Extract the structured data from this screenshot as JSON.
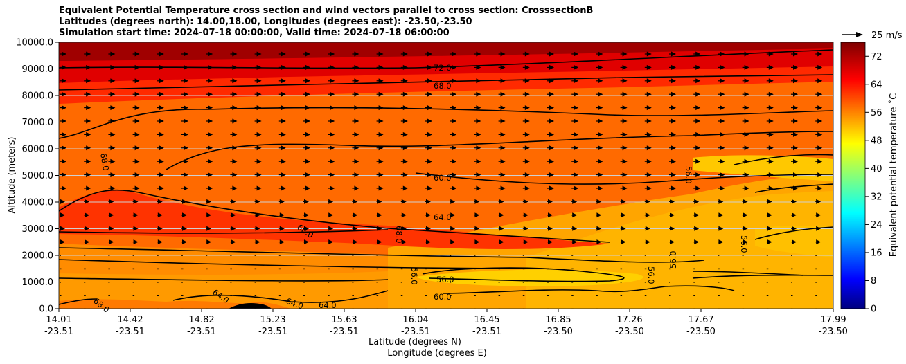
{
  "chart_data": {
    "type": "contour",
    "title": [
      "Equivalent Potential Temperature cross section and wind vectors parallel to cross section: CrosssectionB",
      "Latitudes (degrees north): 14.00,18.00, Longitudes (degrees east): -23.50,-23.50",
      "Simulation start time: 2024-07-18 00:00:00, Valid time: 2024-07-18 06:00:00"
    ],
    "ylabel": "Altitude (meters)",
    "xlabel_lat": "Latitude (degrees N)",
    "xlabel_lon": "Longitude (degrees E)",
    "ylim": [
      0,
      10000
    ],
    "yticks": [
      "0.0",
      "1000.0",
      "2000.0",
      "3000.0",
      "4000.0",
      "5000.0",
      "6000.0",
      "7000.0",
      "8000.0",
      "9000.0",
      "10000.0"
    ],
    "xticks": [
      {
        "lat": "14.01",
        "lon": "-23.51"
      },
      {
        "lat": "14.42",
        "lon": "-23.51"
      },
      {
        "lat": "14.82",
        "lon": "-23.51"
      },
      {
        "lat": "15.23",
        "lon": "-23.51"
      },
      {
        "lat": "15.63",
        "lon": "-23.51"
      },
      {
        "lat": "16.04",
        "lon": "-23.51"
      },
      {
        "lat": "16.45",
        "lon": "-23.51"
      },
      {
        "lat": "16.85",
        "lon": "-23.50"
      },
      {
        "lat": "17.26",
        "lon": "-23.50"
      },
      {
        "lat": "17.67",
        "lon": "-23.50"
      },
      {
        "lat": "17.99",
        "lon": "-23.50"
      }
    ],
    "colorbar": {
      "label": "Equivalent potential temperature ˚C",
      "ticks": [
        "0",
        "8",
        "16",
        "24",
        "32",
        "40",
        "48",
        "56",
        "64",
        "72"
      ],
      "range": [
        0,
        76
      ],
      "colormap": "jet"
    },
    "quiver_key": {
      "label": "25 m/s"
    },
    "contour_levels_labeled": [
      "56.0",
      "60.0",
      "64.0",
      "68.0",
      "72.0"
    ],
    "grid": "horizontal",
    "wind": "westerly, strongest above 5000 m"
  }
}
